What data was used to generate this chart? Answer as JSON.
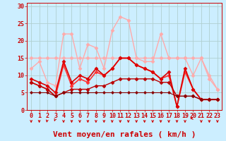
{
  "background_color": "#cceeff",
  "grid_color": "#b0d0d0",
  "xlabel": "Vent moyen/en rafales ( km/h )",
  "xlim": [
    -0.5,
    23.5
  ],
  "ylim": [
    0,
    31
  ],
  "xticks": [
    0,
    1,
    2,
    3,
    4,
    5,
    6,
    7,
    8,
    9,
    10,
    11,
    12,
    13,
    14,
    15,
    16,
    17,
    18,
    19,
    20,
    21,
    22,
    23
  ],
  "yticks": [
    0,
    5,
    10,
    15,
    20,
    25,
    30
  ],
  "lines": [
    {
      "x": [
        0,
        1,
        2,
        3,
        4,
        5,
        6,
        7,
        8,
        9,
        10,
        11,
        12,
        13,
        14,
        15,
        16,
        17,
        18,
        19,
        20,
        21,
        22,
        23
      ],
      "y": [
        12,
        14,
        8,
        7,
        22,
        22,
        12,
        19,
        18,
        12,
        23,
        27,
        26,
        15,
        14,
        14,
        22,
        15,
        15,
        15,
        10,
        15,
        9,
        6
      ],
      "color": "#ffaaaa",
      "lw": 1.0,
      "marker": "D",
      "ms": 2.5
    },
    {
      "x": [
        0,
        1,
        2,
        3,
        4,
        5,
        6,
        7,
        8,
        9,
        10,
        11,
        12,
        13,
        14,
        15,
        16,
        17,
        18,
        19,
        20,
        21,
        22,
        23
      ],
      "y": [
        15,
        15,
        15,
        15,
        15,
        15,
        15,
        15,
        15,
        15,
        15,
        15,
        15,
        15,
        15,
        15,
        15,
        15,
        15,
        15,
        15,
        15,
        10,
        6
      ],
      "color": "#ffaaaa",
      "lw": 1.0,
      "marker": "D",
      "ms": 2.5
    },
    {
      "x": [
        0,
        1,
        2,
        3,
        4,
        5,
        6,
        7,
        8,
        9,
        10,
        11,
        12,
        13,
        14,
        15,
        16,
        17,
        18,
        19,
        20,
        21,
        22,
        23
      ],
      "y": [
        8,
        7,
        6,
        4,
        13,
        7,
        9,
        8,
        11,
        10,
        12,
        15,
        15,
        13,
        12,
        11,
        9,
        10,
        1,
        11,
        6,
        3,
        3,
        3
      ],
      "color": "#ff3333",
      "lw": 1.2,
      "marker": "D",
      "ms": 2.5
    },
    {
      "x": [
        0,
        1,
        2,
        3,
        4,
        5,
        6,
        7,
        8,
        9,
        10,
        11,
        12,
        13,
        14,
        15,
        16,
        17,
        18,
        19,
        20,
        21,
        22,
        23
      ],
      "y": [
        9,
        8,
        7,
        5,
        14,
        8,
        10,
        9,
        12,
        10,
        12,
        15,
        15,
        13,
        12,
        11,
        9,
        11,
        1,
        12,
        6,
        3,
        3,
        3
      ],
      "color": "#dd0000",
      "lw": 1.2,
      "marker": "D",
      "ms": 2.5
    },
    {
      "x": [
        0,
        1,
        2,
        3,
        4,
        5,
        6,
        7,
        8,
        9,
        10,
        11,
        12,
        13,
        14,
        15,
        16,
        17,
        18,
        19,
        20,
        21,
        22,
        23
      ],
      "y": [
        8,
        7,
        6,
        4,
        5,
        6,
        6,
        6,
        7,
        7,
        8,
        9,
        9,
        9,
        9,
        9,
        8,
        8,
        4,
        4,
        4,
        3,
        3,
        3
      ],
      "color": "#bb0000",
      "lw": 1.0,
      "marker": "D",
      "ms": 2.5
    },
    {
      "x": [
        0,
        1,
        2,
        3,
        4,
        5,
        6,
        7,
        8,
        9,
        10,
        11,
        12,
        13,
        14,
        15,
        16,
        17,
        18,
        19,
        20,
        21,
        22,
        23
      ],
      "y": [
        5,
        5,
        5,
        4,
        5,
        5,
        5,
        5,
        5,
        5,
        5,
        5,
        5,
        5,
        5,
        5,
        5,
        5,
        4,
        4,
        4,
        3,
        3,
        3
      ],
      "color": "#880000",
      "lw": 0.8,
      "marker": "D",
      "ms": 2.0
    }
  ],
  "wind_arrows": [
    0,
    1,
    2,
    3,
    4,
    5,
    6,
    7,
    8,
    9,
    10,
    11,
    12,
    13,
    14,
    15,
    16,
    17,
    18,
    19,
    20,
    21,
    22,
    23
  ],
  "wind_angles": [
    270,
    270,
    250,
    225,
    270,
    270,
    270,
    270,
    270,
    270,
    270,
    270,
    270,
    270,
    270,
    270,
    270,
    270,
    270,
    270,
    180,
    270,
    270,
    270
  ],
  "arrow_color": "#cc0000",
  "text_color": "#cc0000",
  "xlabel_fontsize": 8,
  "tick_fontsize": 6
}
